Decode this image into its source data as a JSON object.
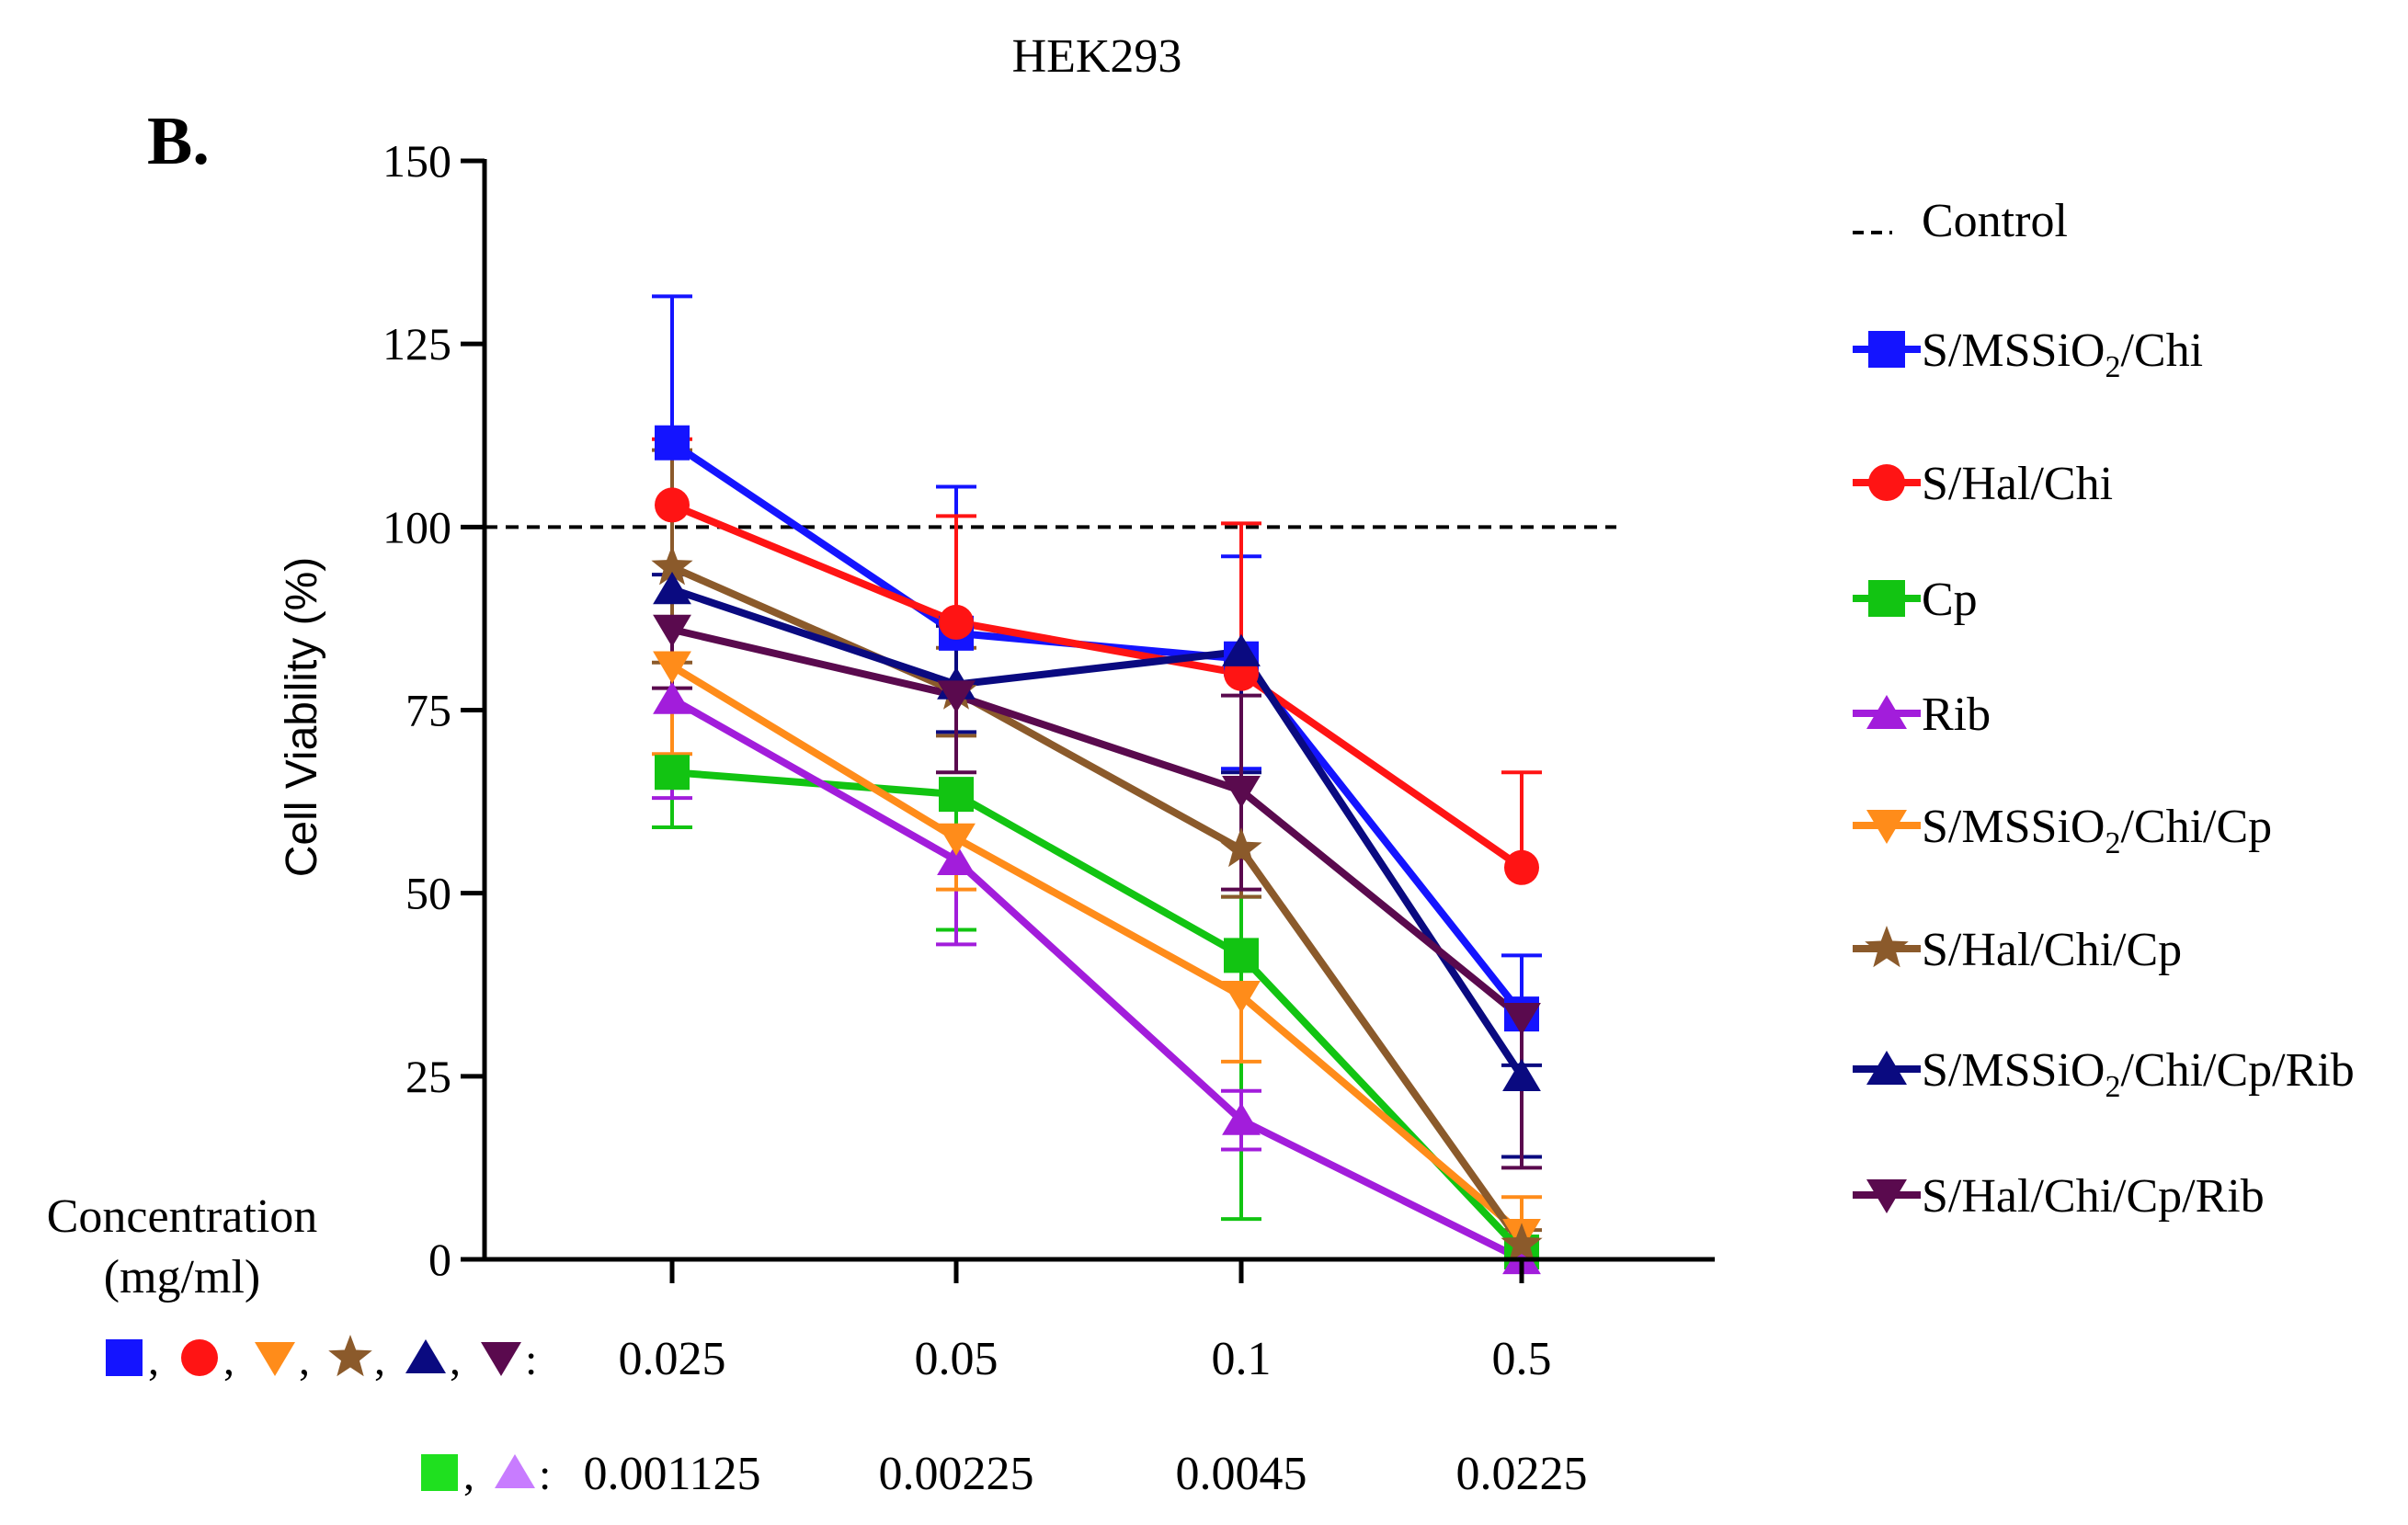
{
  "chart_data": {
    "type": "line",
    "title": "HEK293",
    "panel_label": "B.",
    "ylabel": "Cell Viability (%)",
    "ylim": [
      0,
      150
    ],
    "yticks": [
      0,
      25,
      50,
      75,
      100,
      125,
      150
    ],
    "categories": [
      "0.025",
      "0.05",
      "0.1",
      "0.5"
    ],
    "categories_alt": [
      "0.001125",
      "0.00225",
      "0.0045",
      "0.0225"
    ],
    "conc_label_line1": "Concentration",
    "conc_label_line2": "(mg/ml)",
    "marker_key_primary": {
      "sep": ",",
      "end": ":",
      "colors": [
        "#1414ff",
        "#ff1414",
        "#ff8c1a",
        "#8b5a2b",
        "#0a0a80",
        "#5a0a4e"
      ],
      "shapes": [
        "square",
        "circle",
        "triangle-down",
        "star",
        "triangle-up",
        "triangle-down"
      ]
    },
    "marker_key_alt": {
      "sep": ",",
      "end": ":",
      "colors": [
        "#1fe01f",
        "#c87cff"
      ],
      "shapes": [
        "square",
        "triangle-up"
      ]
    },
    "control": {
      "name": "Control",
      "value": 100,
      "color": "#000000"
    },
    "series": [
      {
        "name": "S/MSSiO",
        "sub": "2",
        "suffix": "/Chi",
        "color": "#1414ff",
        "marker": "square",
        "values": [
          111.5,
          85.5,
          82,
          33.5
        ],
        "err_up": [
          20,
          20,
          14,
          8
        ],
        "err_down": [
          0,
          0,
          15,
          0
        ]
      },
      {
        "name": "S/Hal/Chi",
        "sub": "",
        "suffix": "",
        "color": "#ff1414",
        "marker": "circle",
        "values": [
          103,
          87,
          80,
          53.5
        ],
        "err_up": [
          9,
          14.5,
          20.5,
          13
        ],
        "err_down": [
          0,
          0,
          0,
          0
        ]
      },
      {
        "name": "Cp",
        "sub": "",
        "suffix": "",
        "color": "#12c412",
        "marker": "square",
        "values": [
          66.5,
          63.5,
          41.5,
          1
        ],
        "err_up": [
          0,
          0,
          8,
          0
        ],
        "err_down": [
          7.5,
          18.5,
          36,
          1
        ]
      },
      {
        "name": "Rib",
        "sub": "",
        "suffix": "",
        "color": "#a21ddb",
        "marker": "triangle-up",
        "values": [
          76.5,
          54.5,
          19,
          0
        ],
        "err_up": [
          0,
          0,
          4,
          0
        ],
        "err_down": [
          13.5,
          11.5,
          4,
          0
        ]
      },
      {
        "name": "S/MSSiO",
        "sub": "2",
        "suffix": "/Chi/Cp",
        "color": "#ff8c1a",
        "marker": "triangle-down",
        "values": [
          81,
          57.5,
          36,
          3.5
        ],
        "err_up": [
          0,
          0,
          0,
          5
        ],
        "err_down": [
          12,
          7,
          9,
          3.5
        ]
      },
      {
        "name": "S/Hal/Chi/Cp",
        "sub": "",
        "suffix": "",
        "color": "#8b5a2b",
        "marker": "star",
        "values": [
          94.5,
          77.5,
          56,
          2
        ],
        "err_up": [
          16,
          6,
          0,
          2
        ],
        "err_down": [
          13,
          6,
          6.5,
          2
        ]
      },
      {
        "name": "S/MSSiO",
        "sub": "2",
        "suffix": "/Chi/Cp/Rib",
        "color": "#0a0a80",
        "marker": "triangle-up",
        "values": [
          91.5,
          78.5,
          83,
          25
        ],
        "err_up": [
          2,
          8,
          0,
          1.5
        ],
        "err_down": [
          0,
          6.5,
          16.5,
          11
        ]
      },
      {
        "name": "S/Hal/Chi/Cp/Rib",
        "sub": "",
        "suffix": "",
        "color": "#5a0a4e",
        "marker": "triangle-down",
        "values": [
          86,
          77,
          64,
          33
        ],
        "err_up": [
          0,
          0,
          13,
          0
        ],
        "err_down": [
          8,
          10.5,
          13.5,
          20.5
        ]
      }
    ]
  }
}
